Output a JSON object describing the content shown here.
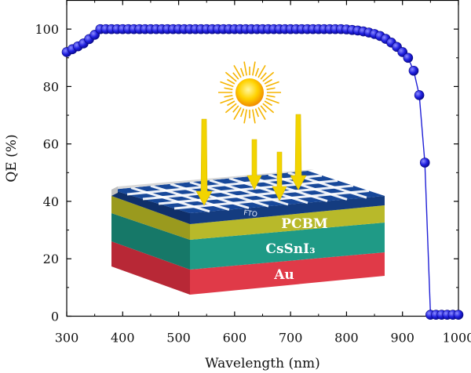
{
  "chart_data": {
    "type": "scatter",
    "title": "",
    "xlabel": "Wavelength (nm)",
    "ylabel": "QE (%)",
    "xlim": [
      300,
      1000
    ],
    "ylim": [
      0,
      110
    ],
    "xticks": [
      300,
      400,
      500,
      600,
      700,
      800,
      900,
      1000
    ],
    "yticks": [
      0,
      20,
      40,
      60,
      80,
      100
    ],
    "grid": false,
    "legend": "none",
    "series": [
      {
        "color": "#1f1fd6",
        "x": [
          300,
          310,
          320,
          330,
          340,
          350,
          360,
          370,
          380,
          390,
          400,
          410,
          420,
          430,
          440,
          450,
          460,
          470,
          480,
          490,
          500,
          510,
          520,
          530,
          540,
          550,
          560,
          570,
          580,
          590,
          600,
          610,
          620,
          630,
          640,
          650,
          660,
          670,
          680,
          690,
          700,
          710,
          720,
          730,
          740,
          750,
          760,
          770,
          780,
          790,
          800,
          810,
          820,
          830,
          840,
          850,
          860,
          870,
          880,
          890,
          900,
          910,
          920,
          930,
          940,
          950,
          960,
          970,
          980,
          990,
          1000
        ],
        "y": [
          92,
          93,
          94,
          95,
          96.5,
          98,
          100,
          100,
          100,
          100,
          100,
          100,
          100,
          100,
          100,
          100,
          100,
          100,
          100,
          100,
          100,
          100,
          100,
          100,
          100,
          100,
          100,
          100,
          100,
          100,
          100,
          100,
          100,
          100,
          100,
          100,
          100,
          100,
          100,
          100,
          100,
          100,
          100,
          100,
          100,
          100,
          100,
          100,
          100,
          100,
          99.9,
          99.7,
          99.5,
          99.2,
          98.8,
          98.3,
          97.6,
          96.6,
          95.3,
          93.8,
          92,
          90,
          85.5,
          77,
          53.5,
          0.5,
          0.5,
          0.5,
          0.5,
          0.5,
          0.5
        ]
      }
    ]
  },
  "inset": {
    "layers": [
      "FTO",
      "PCBM",
      "CsSnI₃",
      "Au"
    ],
    "colors": {
      "fto": "#17489a",
      "pcbm": "#b8b92a",
      "cssni3": "#1f9a86",
      "au": "#e03a48",
      "sun": "#f5c000",
      "arrow": "#f2d400"
    }
  }
}
